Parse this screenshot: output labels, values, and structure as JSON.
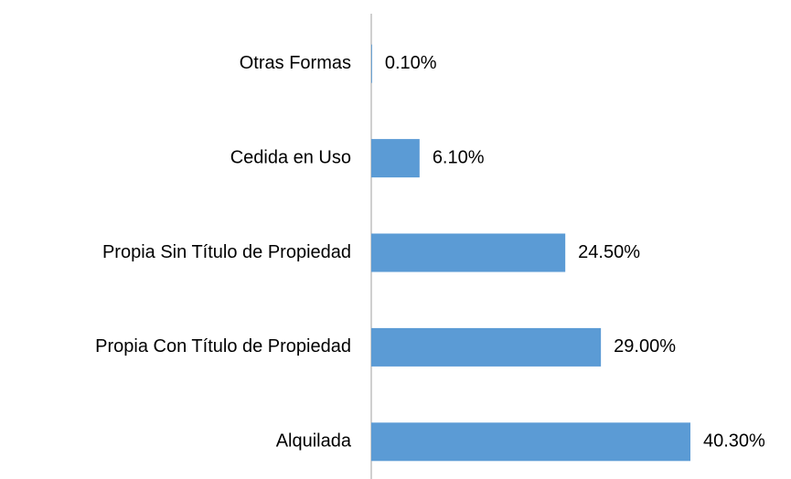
{
  "chart_data": {
    "type": "bar",
    "orientation": "horizontal",
    "categories": [
      "Otras Formas",
      "Cedida en Uso",
      "Propia Sin Título de Propiedad",
      "Propia Con Título de Propiedad",
      "Alquilada"
    ],
    "values": [
      0.1,
      6.1,
      24.5,
      29.0,
      40.3
    ],
    "value_labels": [
      "0.10%",
      "6.10%",
      "24.50%",
      "29.00%",
      "40.30%"
    ],
    "color": "#5b9bd5"
  }
}
